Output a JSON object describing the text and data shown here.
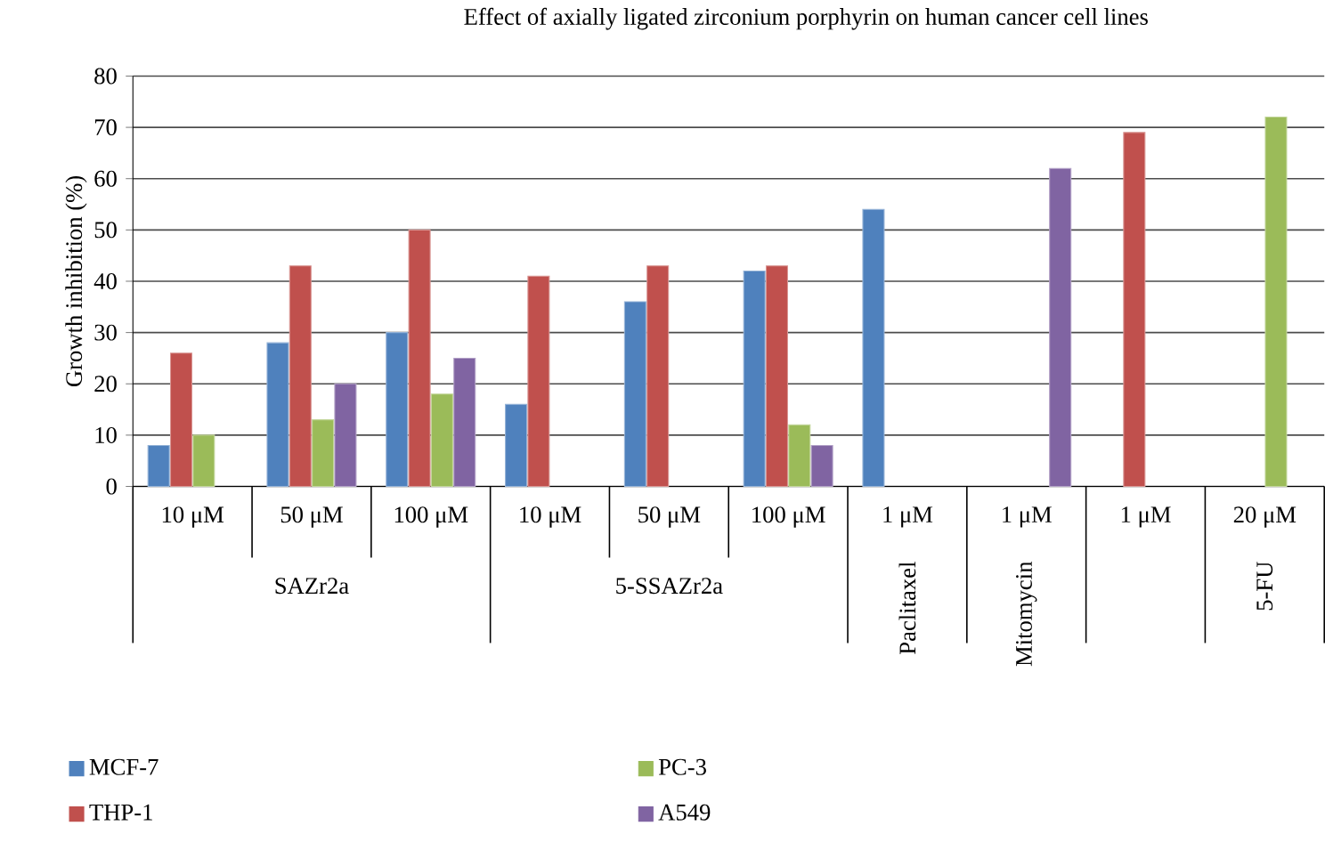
{
  "chart_data": {
    "type": "bar",
    "title": "Effect of axially ligated zirconium porphyrin on human cancer cell lines",
    "ylabel": "Growth inhibition (%)",
    "categories": [
      "10 μM",
      "50 μM",
      "100 μM",
      "10 μM",
      "50 μM",
      "100 μM",
      "1 μM",
      "1 μM",
      "1 μM",
      "20 μM"
    ],
    "series": [
      {
        "name": "MCF-7",
        "color": "#4f81bd",
        "values": [
          8,
          28,
          30,
          16,
          36,
          42,
          54,
          null,
          null,
          null
        ]
      },
      {
        "name": "THP-1",
        "color": "#c0504d",
        "values": [
          26,
          43,
          50,
          41,
          43,
          43,
          null,
          null,
          69,
          null
        ]
      },
      {
        "name": "PC-3",
        "color": "#9bbb59",
        "values": [
          10,
          13,
          18,
          null,
          null,
          12,
          null,
          null,
          null,
          72
        ]
      },
      {
        "name": "A549",
        "color": "#8064a2",
        "values": [
          null,
          20,
          25,
          null,
          null,
          8,
          null,
          62,
          null,
          null
        ]
      }
    ],
    "annotations": [
      "SAZr2a",
      "5-SSAZr2a",
      "Paclitaxel",
      "Mitomycin",
      "5-FU"
    ],
    "ylim": [
      0,
      80
    ],
    "yticks": [
      0,
      10,
      20,
      30,
      40,
      50,
      60,
      70,
      80
    ],
    "grid": "y",
    "legend": "bottom"
  }
}
